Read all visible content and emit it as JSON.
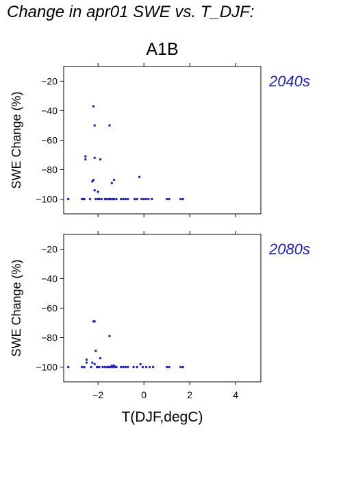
{
  "title": "Change in apr01 SWE vs. T_DJF:",
  "chart_data": {
    "type": "scatter",
    "scenario": "A1B",
    "xlabel": "T(DJF,degC)",
    "ylabel": "SWE Change (%)",
    "xlim": [
      -3.5,
      5.1
    ],
    "ylim": [
      -110,
      -10
    ],
    "xticks": [
      -2,
      0,
      2,
      4
    ],
    "xtick_labels": [
      "−2",
      "0",
      "2",
      "4"
    ],
    "yticks": [
      -20,
      -40,
      -60,
      -80,
      -100
    ],
    "ytick_labels": [
      "−20",
      "−40",
      "−60",
      "−80",
      "−100"
    ],
    "point_color": "#2222aa",
    "label_color": "#2222aa",
    "panels": [
      {
        "label": "2040s",
        "points": [
          [
            -3.3,
            -100
          ],
          [
            -2.7,
            -100
          ],
          [
            -2.65,
            -100
          ],
          [
            -2.6,
            -100
          ],
          [
            -2.55,
            -71
          ],
          [
            -2.55,
            -73
          ],
          [
            -2.35,
            -100
          ],
          [
            -2.25,
            -88
          ],
          [
            -2.2,
            -87
          ],
          [
            -2.2,
            -37
          ],
          [
            -2.15,
            -50
          ],
          [
            -2.15,
            -72
          ],
          [
            -2.15,
            -94
          ],
          [
            -2.1,
            -100
          ],
          [
            -2.0,
            -100
          ],
          [
            -2.0,
            -95
          ],
          [
            -1.95,
            -100
          ],
          [
            -1.9,
            -73
          ],
          [
            -1.85,
            -100
          ],
          [
            -1.7,
            -100
          ],
          [
            -1.65,
            -100
          ],
          [
            -1.55,
            -100
          ],
          [
            -1.5,
            -50
          ],
          [
            -1.5,
            -100
          ],
          [
            -1.45,
            -100
          ],
          [
            -1.4,
            -89
          ],
          [
            -1.35,
            -100
          ],
          [
            -1.3,
            -87
          ],
          [
            -1.3,
            -100
          ],
          [
            -1.2,
            -100
          ],
          [
            -1.0,
            -100
          ],
          [
            -0.9,
            -100
          ],
          [
            -0.8,
            -100
          ],
          [
            -0.7,
            -100
          ],
          [
            -0.4,
            -100
          ],
          [
            -0.3,
            -100
          ],
          [
            -0.2,
            -85
          ],
          [
            -0.1,
            -100
          ],
          [
            0.0,
            -100
          ],
          [
            0.1,
            -100
          ],
          [
            0.2,
            -100
          ],
          [
            0.35,
            -100
          ],
          [
            1.0,
            -100
          ],
          [
            1.1,
            -100
          ],
          [
            1.6,
            -100
          ],
          [
            1.7,
            -100
          ]
        ]
      },
      {
        "label": "2080s",
        "points": [
          [
            -3.3,
            -100
          ],
          [
            -2.7,
            -100
          ],
          [
            -2.6,
            -100
          ],
          [
            -2.5,
            -95
          ],
          [
            -2.5,
            -97
          ],
          [
            -2.3,
            -100
          ],
          [
            -2.25,
            -97
          ],
          [
            -2.2,
            -69
          ],
          [
            -2.15,
            -69
          ],
          [
            -2.15,
            -98
          ],
          [
            -2.1,
            -89
          ],
          [
            -2.05,
            -100
          ],
          [
            -2.0,
            -100
          ],
          [
            -1.95,
            -100
          ],
          [
            -1.9,
            -94
          ],
          [
            -1.8,
            -100
          ],
          [
            -1.7,
            -100
          ],
          [
            -1.6,
            -100
          ],
          [
            -1.55,
            -100
          ],
          [
            -1.5,
            -79
          ],
          [
            -1.5,
            -100
          ],
          [
            -1.45,
            -100
          ],
          [
            -1.4,
            -99
          ],
          [
            -1.35,
            -100
          ],
          [
            -1.3,
            -99
          ],
          [
            -1.25,
            -100
          ],
          [
            -1.2,
            -100
          ],
          [
            -1.0,
            -100
          ],
          [
            -0.9,
            -100
          ],
          [
            -0.8,
            -100
          ],
          [
            -0.7,
            -100
          ],
          [
            -0.45,
            -100
          ],
          [
            -0.3,
            -100
          ],
          [
            -0.15,
            -98
          ],
          [
            -0.05,
            -100
          ],
          [
            0.1,
            -100
          ],
          [
            0.25,
            -100
          ],
          [
            0.4,
            -100
          ],
          [
            1.0,
            -100
          ],
          [
            1.1,
            -100
          ],
          [
            1.6,
            -100
          ],
          [
            1.7,
            -100
          ]
        ]
      }
    ]
  }
}
